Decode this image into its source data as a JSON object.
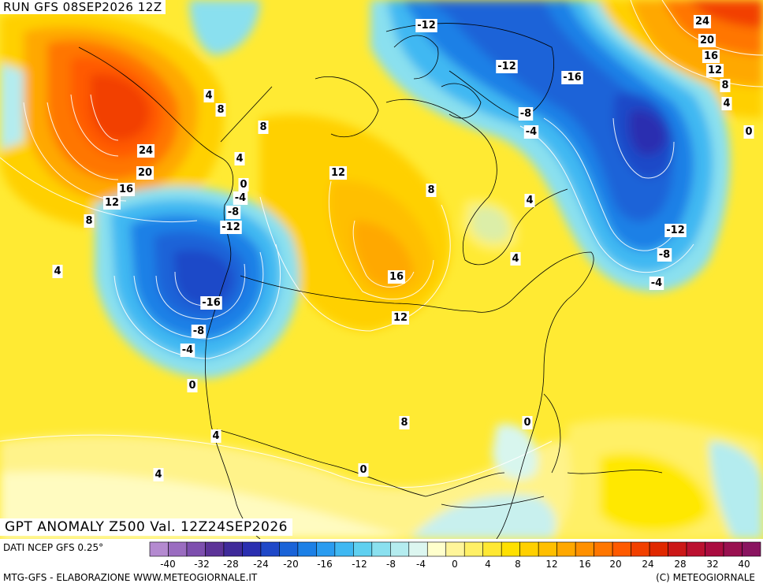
{
  "header": {
    "run_title": "RUN GFS 08SEP2026 12Z",
    "valid_title": "GPT ANOMALY Z500 Val. 12Z24SEP2026"
  },
  "footer": {
    "data_source": "DATI NCEP GFS 0.25°",
    "credit": "MTG-GFS - ELABORAZIONE WWW.METEOGIORNALE.IT",
    "copyright": "(C) METEOGIORNALE"
  },
  "legend": {
    "colors": [
      "#b48ad0",
      "#9a6cc0",
      "#7d4fae",
      "#5c3398",
      "#3f2a9a",
      "#2a2fb0",
      "#1f48c8",
      "#1a63d8",
      "#1c80e6",
      "#2a9cf0",
      "#3fb8f2",
      "#5fd0f0",
      "#8ae0ef",
      "#b4ecef",
      "#dcf6f0",
      "#ffffcc",
      "#fff59a",
      "#fff066",
      "#ffe833",
      "#ffe000",
      "#ffd000",
      "#ffbf00",
      "#ffa800",
      "#ff9000",
      "#ff7600",
      "#ff5a00",
      "#f24000",
      "#e02800",
      "#cc1818",
      "#bb1030",
      "#aa0c40",
      "#991050",
      "#8a1460"
    ],
    "tick_labels": [
      "-40",
      "-32",
      "-28",
      "-24",
      "-20",
      "-16",
      "-12",
      "-8",
      "-4",
      "0",
      "4",
      "8",
      "12",
      "16",
      "20",
      "24",
      "28",
      "32",
      "40"
    ]
  },
  "contour_labels": [
    {
      "text": "-12"
    },
    {
      "text": "-12"
    },
    {
      "text": "-16"
    },
    {
      "text": "-8"
    },
    {
      "text": "-4"
    },
    {
      "text": "24"
    },
    {
      "text": "20"
    },
    {
      "text": "16"
    },
    {
      "text": "12"
    },
    {
      "text": "8"
    },
    {
      "text": "4"
    },
    {
      "text": "0"
    },
    {
      "text": "4"
    },
    {
      "text": "8"
    },
    {
      "text": "8"
    },
    {
      "text": "24"
    },
    {
      "text": "20"
    },
    {
      "text": "16"
    },
    {
      "text": "12"
    },
    {
      "text": "8"
    },
    {
      "text": "4"
    },
    {
      "text": "0"
    },
    {
      "text": "-4"
    },
    {
      "text": "-8"
    },
    {
      "text": "-12"
    },
    {
      "text": "-16"
    },
    {
      "text": "-8"
    },
    {
      "text": "-4"
    },
    {
      "text": "0"
    },
    {
      "text": "4"
    },
    {
      "text": "12"
    },
    {
      "text": "8"
    },
    {
      "text": "4"
    },
    {
      "text": "4"
    },
    {
      "text": "16"
    },
    {
      "text": "12"
    },
    {
      "text": "-12"
    },
    {
      "text": "-8"
    },
    {
      "text": "-4"
    },
    {
      "text": "0"
    },
    {
      "text": "8"
    },
    {
      "text": "4"
    },
    {
      "text": "4"
    },
    {
      "text": "0"
    }
  ]
}
